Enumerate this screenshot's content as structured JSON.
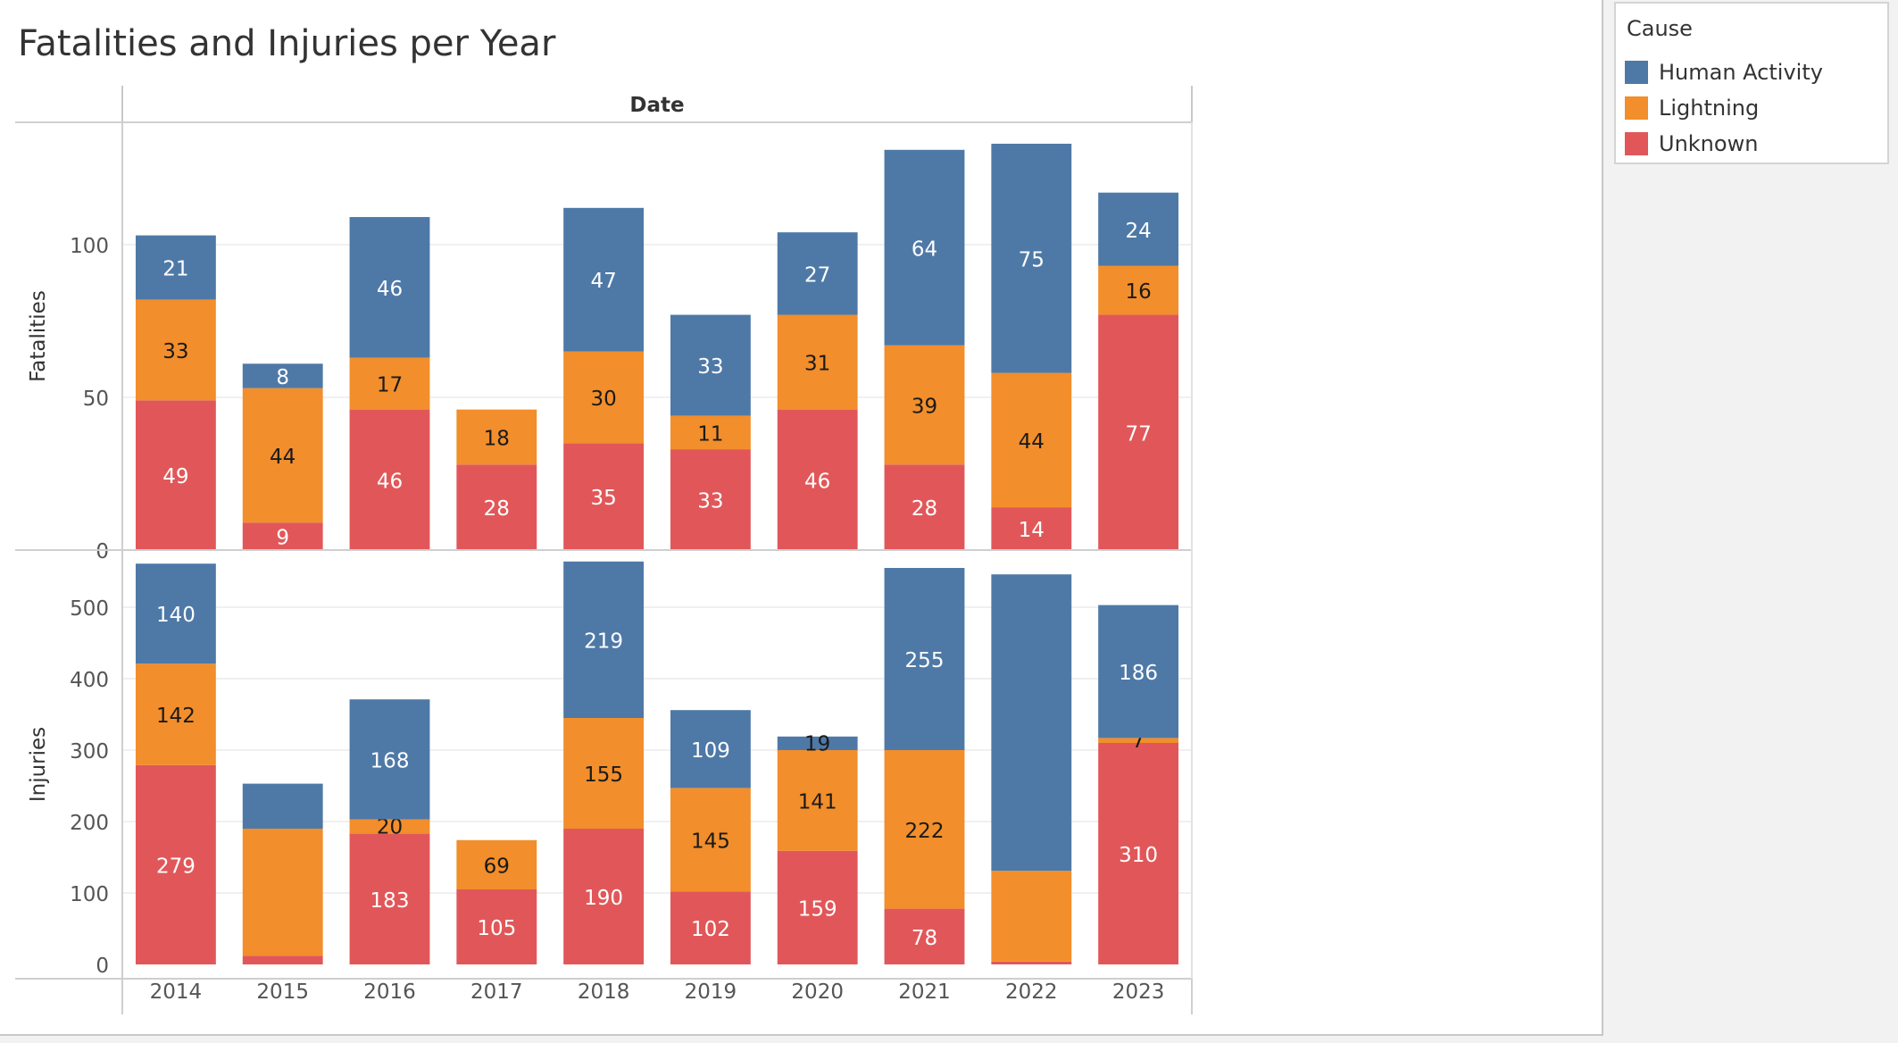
{
  "title": "Fatalities and Injuries per Year",
  "legend": {
    "title": "Cause",
    "items": [
      {
        "label": "Human Activity",
        "color": "#4e79a7"
      },
      {
        "label": "Lightning",
        "color": "#f28e2b"
      },
      {
        "label": "Unknown",
        "color": "#e15759"
      }
    ]
  },
  "chart_data": {
    "type": "bar",
    "stacked": true,
    "column_header": "Date",
    "categories": [
      "2014",
      "2015",
      "2016",
      "2017",
      "2018",
      "2019",
      "2020",
      "2021",
      "2022",
      "2023"
    ],
    "panels": [
      {
        "ylabel": "Fatalities",
        "ylim": [
          0,
          140
        ],
        "yticks": [
          0,
          50,
          100
        ],
        "series": [
          {
            "name": "Unknown",
            "values": [
              49,
              9,
              46,
              28,
              35,
              33,
              46,
              28,
              14,
              77
            ]
          },
          {
            "name": "Lightning",
            "values": [
              33,
              44,
              17,
              18,
              30,
              11,
              31,
              39,
              44,
              16
            ]
          },
          {
            "name": "Human Activity",
            "values": [
              21,
              8,
              46,
              0,
              47,
              33,
              27,
              64,
              75,
              24
            ]
          }
        ]
      },
      {
        "ylabel": "Injuries",
        "ylim": [
          -20,
          580
        ],
        "yticks": [
          0,
          100,
          200,
          300,
          400,
          500
        ],
        "series": [
          {
            "name": "Unknown",
            "values": [
              279,
              12,
              183,
              105,
              190,
              102,
              159,
              78,
              4,
              310
            ]
          },
          {
            "name": "Lightning",
            "values": [
              142,
              178,
              20,
              69,
              155,
              145,
              141,
              222,
              127,
              7
            ]
          },
          {
            "name": "Human Activity",
            "values": [
              140,
              63,
              168,
              0,
              219,
              109,
              19,
              255,
              415,
              186
            ]
          }
        ]
      }
    ],
    "hidden_labels": [
      [
        "1-1",
        "1-8"
      ]
    ],
    "grid": true,
    "legend_position": "right"
  }
}
